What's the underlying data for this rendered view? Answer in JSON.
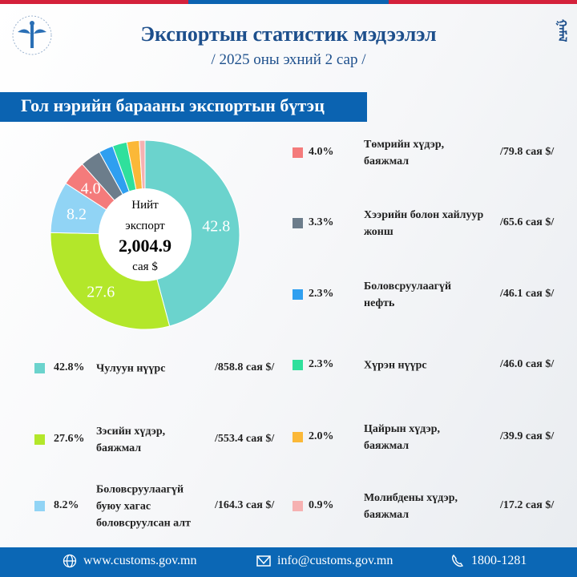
{
  "header": {
    "title": "Экспортын статистик мэдээлэл",
    "subtitle": "/ 2025 оны эхний 2 сар /",
    "logo_text": "Mongolian Customs",
    "script_logo": "ᠭᠠᠮᠠᠯ"
  },
  "banner": "Гол нэрийн барааны экспортын бүтэц",
  "colors": {
    "stripe_red": "#d4213b",
    "stripe_blue": "#0b63b1",
    "banner": "#0b63b1",
    "title": "#1d4f8c"
  },
  "chart_data": {
    "type": "pie",
    "donut": true,
    "center": {
      "line1": "Нийт",
      "line2": "экспорт",
      "total": "2,004.9",
      "unit": "сая $"
    },
    "categories": [
      "Чулуун нүүрс",
      "Зэсийн хүдэр, баяжмал",
      "Боловсруулаагүй буюу хагас боловсруулсан алт",
      "Төмрийн хүдэр, баяжмал",
      "Хээрийн болон хайлуур жонш",
      "Боловсруулаагүй нефть",
      "Хүрэн нүүрс",
      "Цайрын хүдэр, баяжмал",
      "Молибдены хүдэр, баяжмал"
    ],
    "values": [
      42.8,
      27.6,
      8.2,
      4.0,
      3.3,
      2.3,
      2.3,
      2.0,
      0.9
    ],
    "pct_labels": [
      "42.8%",
      "27.6%",
      "8.2%",
      "4.0%",
      "3.3%",
      "2.3%",
      "2.3%",
      "2.0%",
      "0.9%"
    ],
    "amounts": [
      "/858.8 сая $/",
      "/553.4 сая $/",
      "/164.3 сая $/",
      "/79.8 сая $/",
      "/65.6 сая $/",
      "/46.1 сая $/",
      "/46.0 сая $/",
      "/39.9 сая $/",
      "/17.2 сая $/"
    ],
    "slice_labels": [
      "42.8",
      "27.6",
      "8.2",
      "4.0",
      "",
      "",
      "",
      "",
      ""
    ],
    "colors": [
      "#6bd3cd",
      "#b3e72a",
      "#91d4f5",
      "#f47b7b",
      "#6c7d8b",
      "#2f9ff0",
      "#2fe09c",
      "#fbb838",
      "#f6b1b1"
    ]
  },
  "footer": {
    "website": "www.customs.gov.mn",
    "email": "info@customs.gov.mn",
    "phone": "1800-1281"
  }
}
